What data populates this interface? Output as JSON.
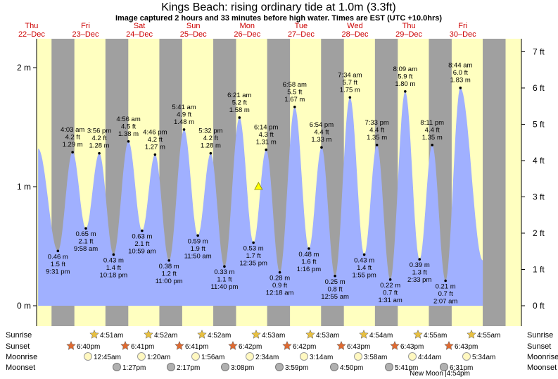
{
  "title": "Kings Beach: rising  ordinary tide at 1.0m (3.3ft)",
  "subtitle": "Image captured 2 hours and 33 minutes before high water. Times are EST (UTC +10.0hrs)",
  "days": [
    {
      "dow": "Thu",
      "date": "22–Dec"
    },
    {
      "dow": "Fri",
      "date": "23–Dec"
    },
    {
      "dow": "Sat",
      "date": "24–Dec"
    },
    {
      "dow": "Sun",
      "date": "25–Dec"
    },
    {
      "dow": "Mon",
      "date": "26–Dec"
    },
    {
      "dow": "Tue",
      "date": "27–Dec"
    },
    {
      "dow": "Wed",
      "date": "28–Dec"
    },
    {
      "dow": "Thu",
      "date": "29–Dec"
    },
    {
      "dow": "Fri",
      "date": "30–Dec"
    }
  ],
  "colors": {
    "day_bg": "#ffffc0",
    "night_bg": "#a0a0a0",
    "tide_fill": "#a0b0ff",
    "day_text": "#cc0000",
    "marker": "#ffff00"
  },
  "chart_data": {
    "type": "area",
    "x_unit": "days from 22-Dec 00:00 (EST)",
    "ylim_m": [
      0,
      2.2
    ],
    "ylim_ft": [
      0,
      7.3
    ],
    "y_ticks_m": [
      "0 m",
      "1 m",
      "2 m"
    ],
    "y_ticks_ft": [
      "0 ft",
      "1 ft",
      "2 ft",
      "3 ft",
      "4 ft",
      "5 ft",
      "6 ft",
      "7 ft"
    ],
    "current_level_m": 1.0,
    "extremes": [
      {
        "t": "4:03 am",
        "ft": "4.2 ft",
        "m": "1.29 m",
        "v": 1.29,
        "x": 1.169,
        "high": true
      },
      {
        "t": "9:31 pm",
        "ft": "1.5 ft",
        "m": "0.46 m",
        "v": 0.46,
        "x": 0.897,
        "high": false
      },
      {
        "t": "9:58 am",
        "ft": "2.1 ft",
        "m": "0.65 m",
        "v": 0.65,
        "x": 1.415,
        "high": false
      },
      {
        "t": "3:56 pm",
        "ft": "4.2 ft",
        "m": "1.28 m",
        "v": 1.28,
        "x": 1.664,
        "high": true
      },
      {
        "t": "10:18 pm",
        "ft": "1.4 ft",
        "m": "0.43 m",
        "v": 0.43,
        "x": 1.929,
        "high": false
      },
      {
        "t": "4:56 am",
        "ft": "4.5 ft",
        "m": "1.38 m",
        "v": 1.38,
        "x": 2.206,
        "high": true
      },
      {
        "t": "10:59 am",
        "ft": "2.1 ft",
        "m": "0.63 m",
        "v": 0.63,
        "x": 2.458,
        "high": false
      },
      {
        "t": "4:46 pm",
        "ft": "4.2 ft",
        "m": "1.27 m",
        "v": 1.27,
        "x": 2.699,
        "high": true
      },
      {
        "t": "11:00 pm",
        "ft": "1.2 ft",
        "m": "0.38 m",
        "v": 0.38,
        "x": 2.958,
        "high": false
      },
      {
        "t": "5:41 am",
        "ft": "4.9 ft",
        "m": "1.48 m",
        "v": 1.48,
        "x": 3.237,
        "high": true
      },
      {
        "t": "11:50 am",
        "ft": "1.9 ft",
        "m": "0.59 m",
        "v": 0.59,
        "x": 3.493,
        "high": false
      },
      {
        "t": "5:32 pm",
        "ft": "4.2 ft",
        "m": "1.28 m",
        "v": 1.28,
        "x": 3.731,
        "high": true
      },
      {
        "t": "11:40 pm",
        "ft": "1.1 ft",
        "m": "0.33 m",
        "v": 0.33,
        "x": 3.986,
        "high": false
      },
      {
        "t": "6:21 am",
        "ft": "5.2 ft",
        "m": "1.58 m",
        "v": 1.58,
        "x": 4.265,
        "high": true
      },
      {
        "t": "12:35 pm",
        "ft": "1.7 ft",
        "m": "0.53 m",
        "v": 0.53,
        "x": 4.524,
        "high": false
      },
      {
        "t": "6:14 pm",
        "ft": "4.3 ft",
        "m": "1.31 m",
        "v": 1.31,
        "x": 4.76,
        "high": true
      },
      {
        "t": "12:18 am",
        "ft": "0.9 ft",
        "m": "0.28 m",
        "v": 0.28,
        "x": 5.013,
        "high": false
      },
      {
        "t": "6:58 am",
        "ft": "5.5 ft",
        "m": "1.67 m",
        "v": 1.67,
        "x": 5.29,
        "high": true
      },
      {
        "t": "1:16 pm",
        "ft": "1.6 ft",
        "m": "0.48 m",
        "v": 0.48,
        "x": 5.553,
        "high": false
      },
      {
        "t": "6:54 pm",
        "ft": "4.4 ft",
        "m": "1.33 m",
        "v": 1.33,
        "x": 5.788,
        "high": true
      },
      {
        "t": "12:55 am",
        "ft": "0.8 ft",
        "m": "0.25 m",
        "v": 0.25,
        "x": 6.038,
        "high": false
      },
      {
        "t": "7:34 am",
        "ft": "5.7 ft",
        "m": "1.75 m",
        "v": 1.75,
        "x": 6.315,
        "high": true
      },
      {
        "t": "1:55 pm",
        "ft": "1.4 ft",
        "m": "0.43 m",
        "v": 0.43,
        "x": 6.58,
        "high": false
      },
      {
        "t": "7:33 pm",
        "ft": "4.4 ft",
        "m": "1.35 m",
        "v": 1.35,
        "x": 6.815,
        "high": true
      },
      {
        "t": "1:31 am",
        "ft": "0.7 ft",
        "m": "0.22 m",
        "v": 0.22,
        "x": 7.063,
        "high": false
      },
      {
        "t": "8:09 am",
        "ft": "5.9 ft",
        "m": "1.80 m",
        "v": 1.8,
        "x": 7.34,
        "high": true
      },
      {
        "t": "2:33 pm",
        "ft": "1.3 ft",
        "m": "0.39 m",
        "v": 0.39,
        "x": 7.606,
        "high": false
      },
      {
        "t": "8:11 pm",
        "ft": "4.4 ft",
        "m": "1.35 m",
        "v": 1.35,
        "x": 7.841,
        "high": true
      },
      {
        "t": "2:07 am",
        "ft": "0.7 ft",
        "m": "0.21 m",
        "v": 0.21,
        "x": 8.088,
        "high": false
      },
      {
        "t": "8:44 am",
        "ft": "6.0 ft",
        "m": "1.83 m",
        "v": 1.83,
        "x": 8.364,
        "high": true
      }
    ],
    "curve_start": {
      "x": 0.53,
      "v": 1.32
    },
    "curve_end": {
      "x": 8.78,
      "v": 0.38
    }
  },
  "astro": {
    "row_labels": [
      "Sunrise",
      "Sunset",
      "Moonrise",
      "Moonset"
    ],
    "sunrise": [
      "4:51am",
      "4:52am",
      "4:52am",
      "4:53am",
      "4:53am",
      "4:54am",
      "4:55am",
      "4:55am"
    ],
    "sunset": [
      "6:40pm",
      "6:41pm",
      "6:41pm",
      "6:42pm",
      "6:42pm",
      "6:43pm",
      "6:43pm",
      "6:43pm"
    ],
    "moonrise": [
      "12:45am",
      "1:20am",
      "1:56am",
      "2:34am",
      "3:14am",
      "3:58am",
      "4:44am",
      "5:34am"
    ],
    "moonset": [
      "1:27pm",
      "2:17pm",
      "3:08pm",
      "3:59pm",
      "4:50pm",
      "5:41pm",
      "6:31pm"
    ],
    "new_moon": "New Moon",
    "new_moon_time": "|4:54pm"
  }
}
